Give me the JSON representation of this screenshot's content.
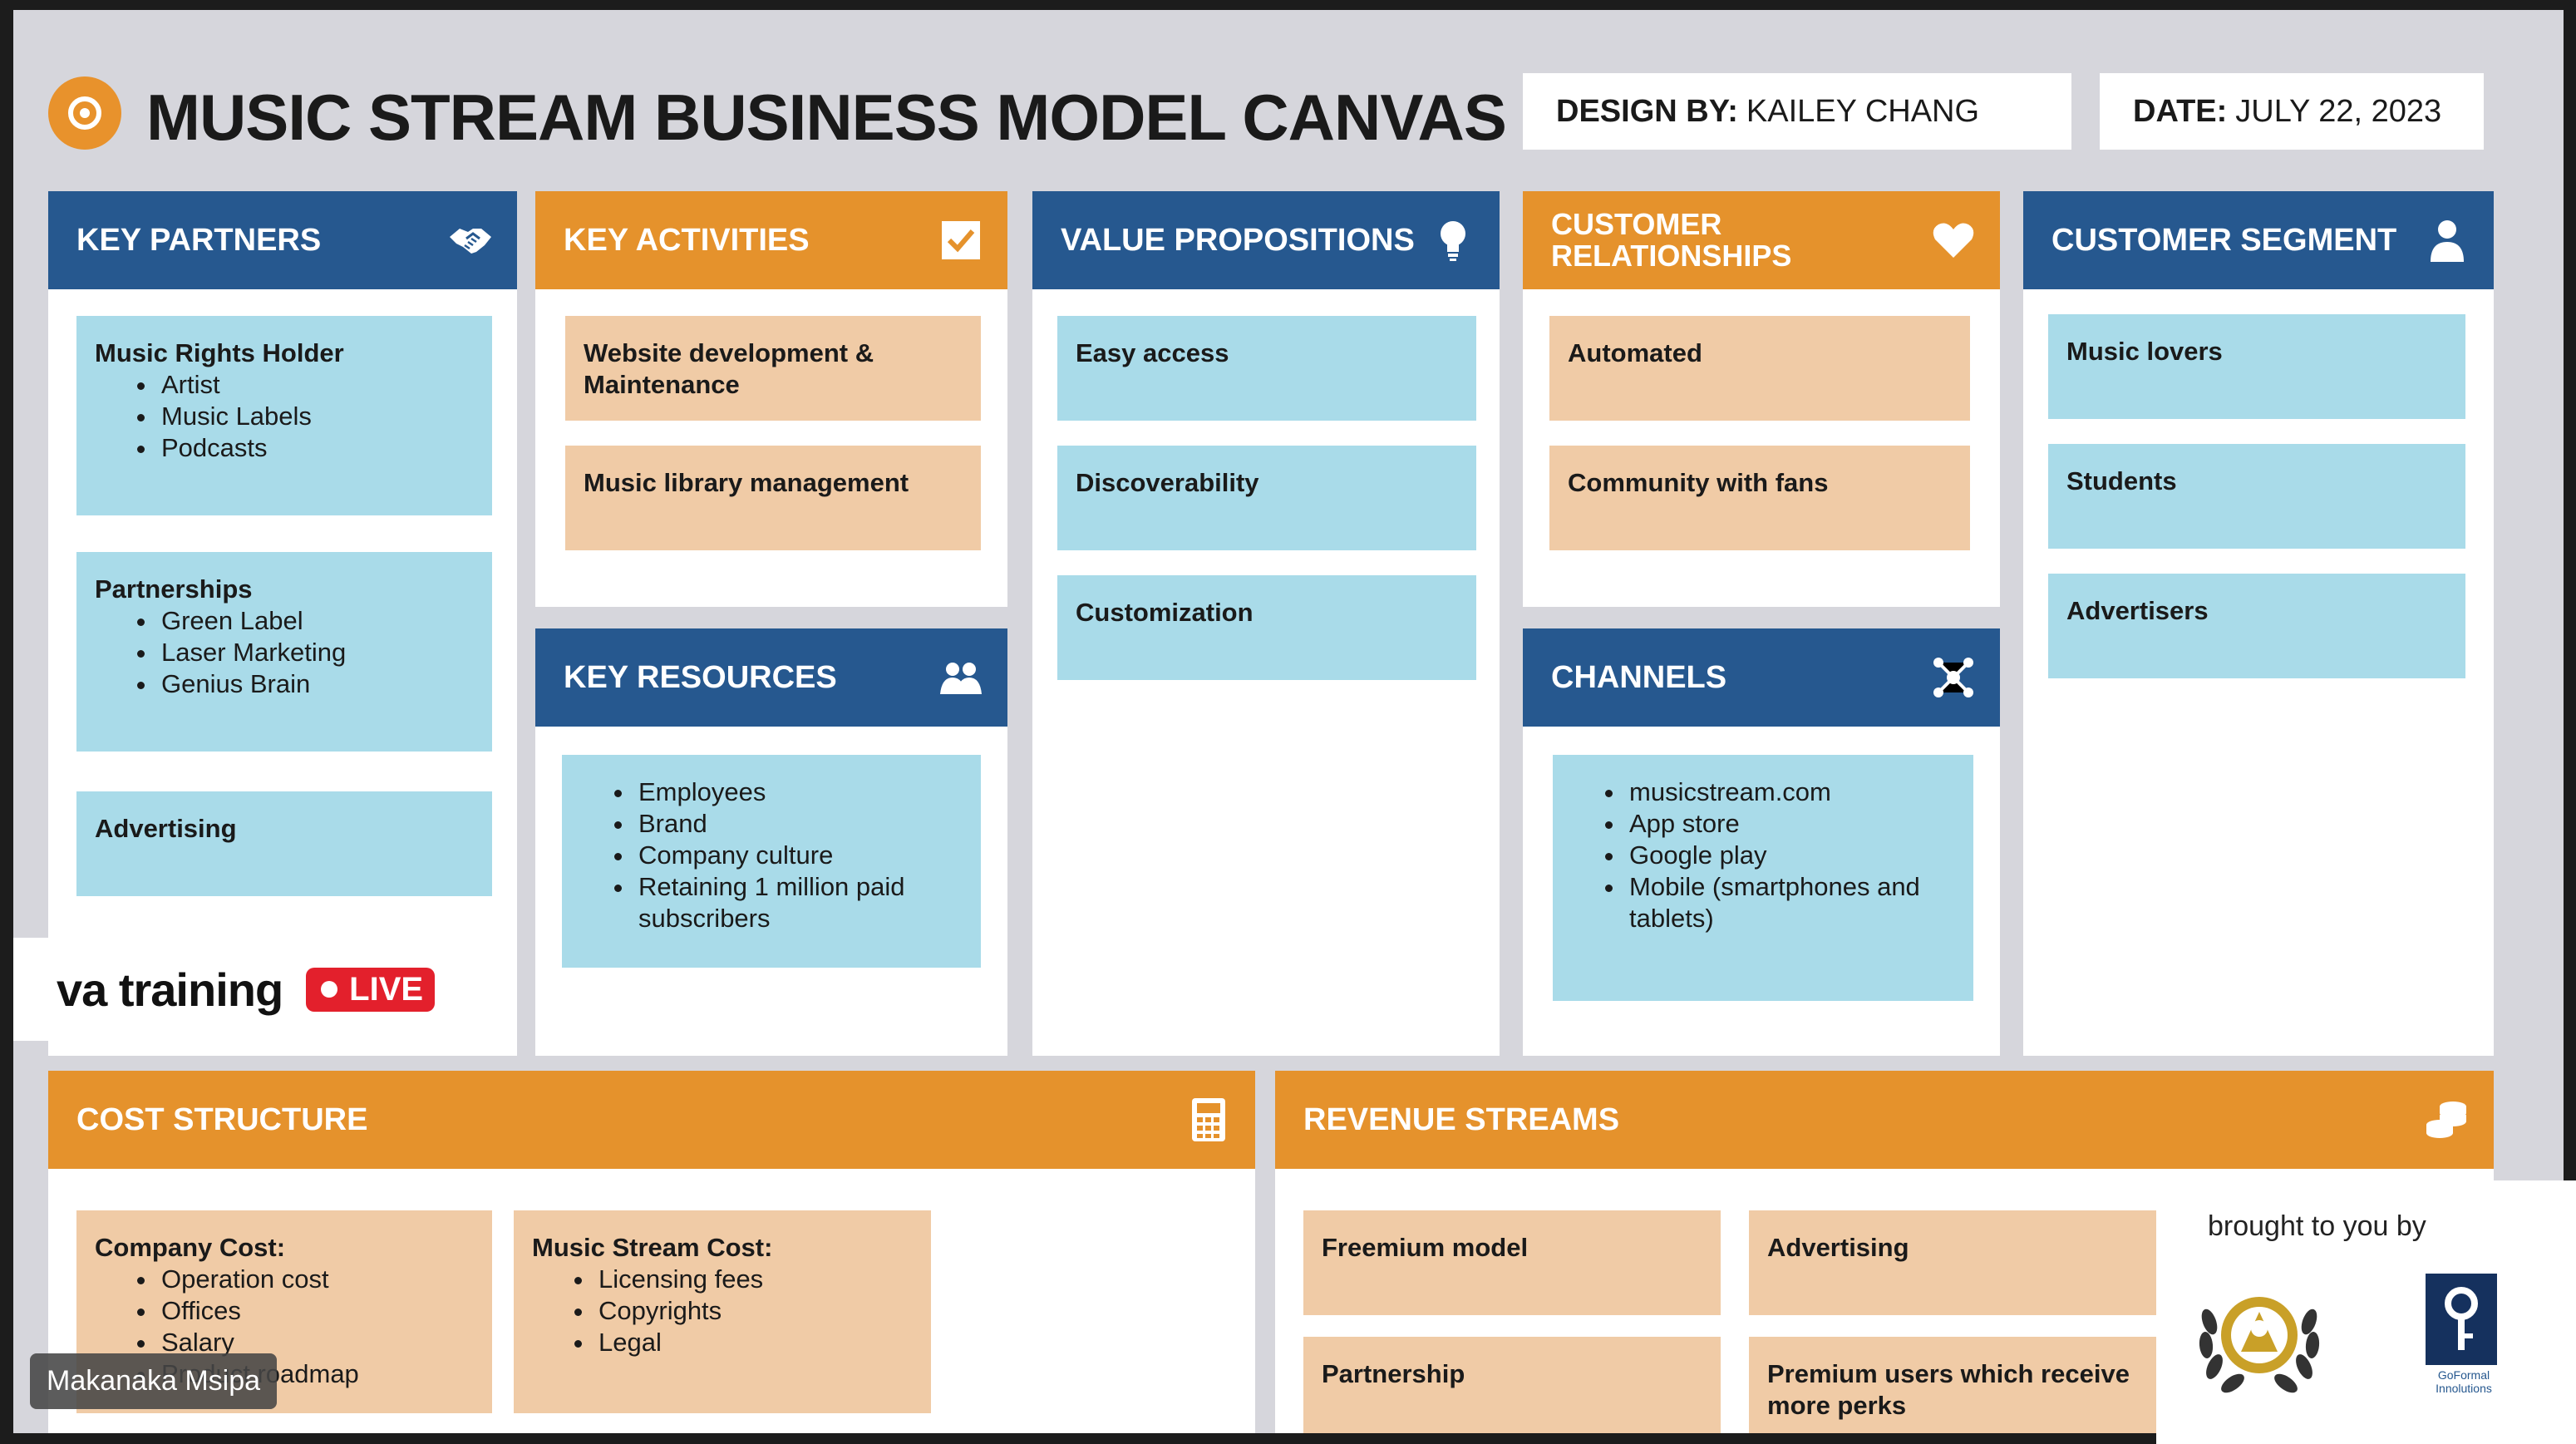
{
  "header": {
    "title": "MUSIC STREAM BUSINESS MODEL CANVAS",
    "design_label": "DESIGN BY:",
    "design_value": "KAILEY CHANG",
    "date_label": "DATE:",
    "date_value": "JULY 22, 2023"
  },
  "key_partners": {
    "title": "KEY PARTNERS",
    "icon": "handshake-icon",
    "cards": [
      {
        "title": "Music Rights Holder",
        "items": [
          "Artist",
          "Music Labels",
          "Podcasts"
        ]
      },
      {
        "title": "Partnerships",
        "items": [
          "Green Label",
          "Laser Marketing",
          "Genius Brain"
        ]
      },
      {
        "title": "Advertising"
      }
    ]
  },
  "key_activities": {
    "title": "KEY ACTIVITIES",
    "icon": "checkbox-icon",
    "cards": [
      "Website development & Maintenance",
      "Music library management"
    ]
  },
  "key_resources": {
    "title": "KEY RESOURCES",
    "icon": "people-icon",
    "items": [
      "Employees",
      "Brand",
      "Company culture",
      "Retaining 1 million paid subscribers"
    ]
  },
  "value_propositions": {
    "title": "VALUE PROPOSITIONS",
    "icon": "lightbulb-icon",
    "cards": [
      "Easy access",
      "Discoverability",
      "Customization"
    ]
  },
  "customer_relationships": {
    "title": "CUSTOMER RELATIONSHIPS",
    "icon": "heart-icon",
    "cards": [
      "Automated",
      "Community with fans"
    ]
  },
  "channels": {
    "title": "CHANNELS",
    "icon": "network-icon",
    "items": [
      "musicstream.com",
      "App store",
      "Google play",
      "Mobile (smartphones and tablets)"
    ]
  },
  "customer_segment": {
    "title": "CUSTOMER SEGMENT",
    "icon": "person-icon",
    "cards": [
      "Music lovers",
      "Students",
      "Advertisers"
    ]
  },
  "cost_structure": {
    "title": "COST STRUCTURE",
    "icon": "calculator-icon",
    "cards": [
      {
        "title": "Company Cost:",
        "items": [
          "Operation cost",
          "Offices",
          "Salary",
          "Product roadmap"
        ]
      },
      {
        "title": "Music Stream Cost:",
        "items": [
          "Licensing fees",
          "Copyrights",
          "Legal"
        ]
      }
    ]
  },
  "revenue_streams": {
    "title": "REVENUE STREAMS",
    "icon": "coins-icon",
    "cards": [
      "Freemium model",
      "Advertising",
      "Partnership",
      "Premium users which receive more perks"
    ]
  },
  "overlay": {
    "watermark": "va training",
    "live_label": "LIVE",
    "participant_name": "Makanaka Msipa",
    "brought_by": "brought to you by",
    "sponsor_logo_text": "GoFormal Innolutions"
  },
  "colors": {
    "blue_header": "#26588f",
    "orange_header": "#e5922c",
    "blue_card": "#a9dbe9",
    "orange_card": "#f0cba6",
    "live_red": "#e3202c"
  }
}
